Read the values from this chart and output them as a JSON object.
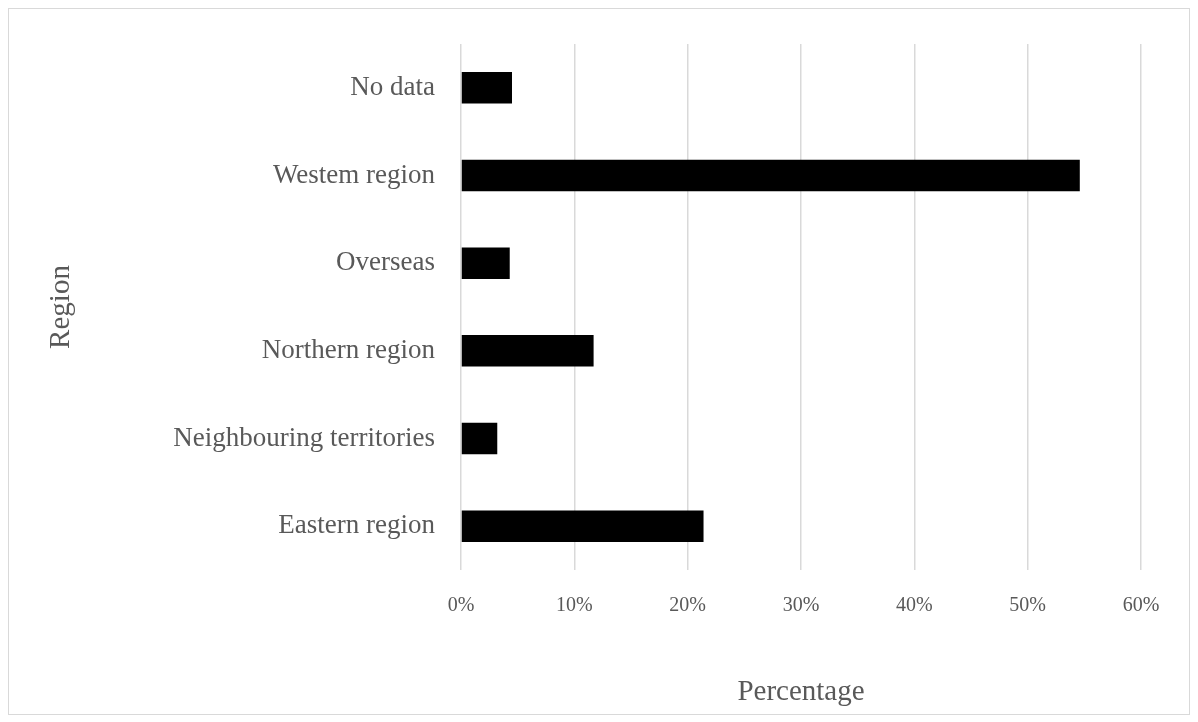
{
  "chart_data": {
    "type": "bar",
    "orientation": "horizontal",
    "categories": [
      "No data",
      "Westem region",
      "Overseas",
      "Northern region",
      "Neighbouring territories",
      "Eastern region"
    ],
    "values": [
      4.5,
      54.6,
      4.3,
      11.7,
      3.2,
      21.4
    ],
    "color": "#000000",
    "xlabel": "Percentage",
    "ylabel": "Region",
    "xlim": [
      0,
      60
    ],
    "xticks": [
      {
        "value": 0,
        "label": "0%"
      },
      {
        "value": 10,
        "label": "10%"
      },
      {
        "value": 20,
        "label": "20%"
      },
      {
        "value": 30,
        "label": "30%"
      },
      {
        "value": 40,
        "label": "40%"
      },
      {
        "value": 50,
        "label": "50%"
      },
      {
        "value": 60,
        "label": "60%"
      }
    ],
    "grid": "x"
  }
}
